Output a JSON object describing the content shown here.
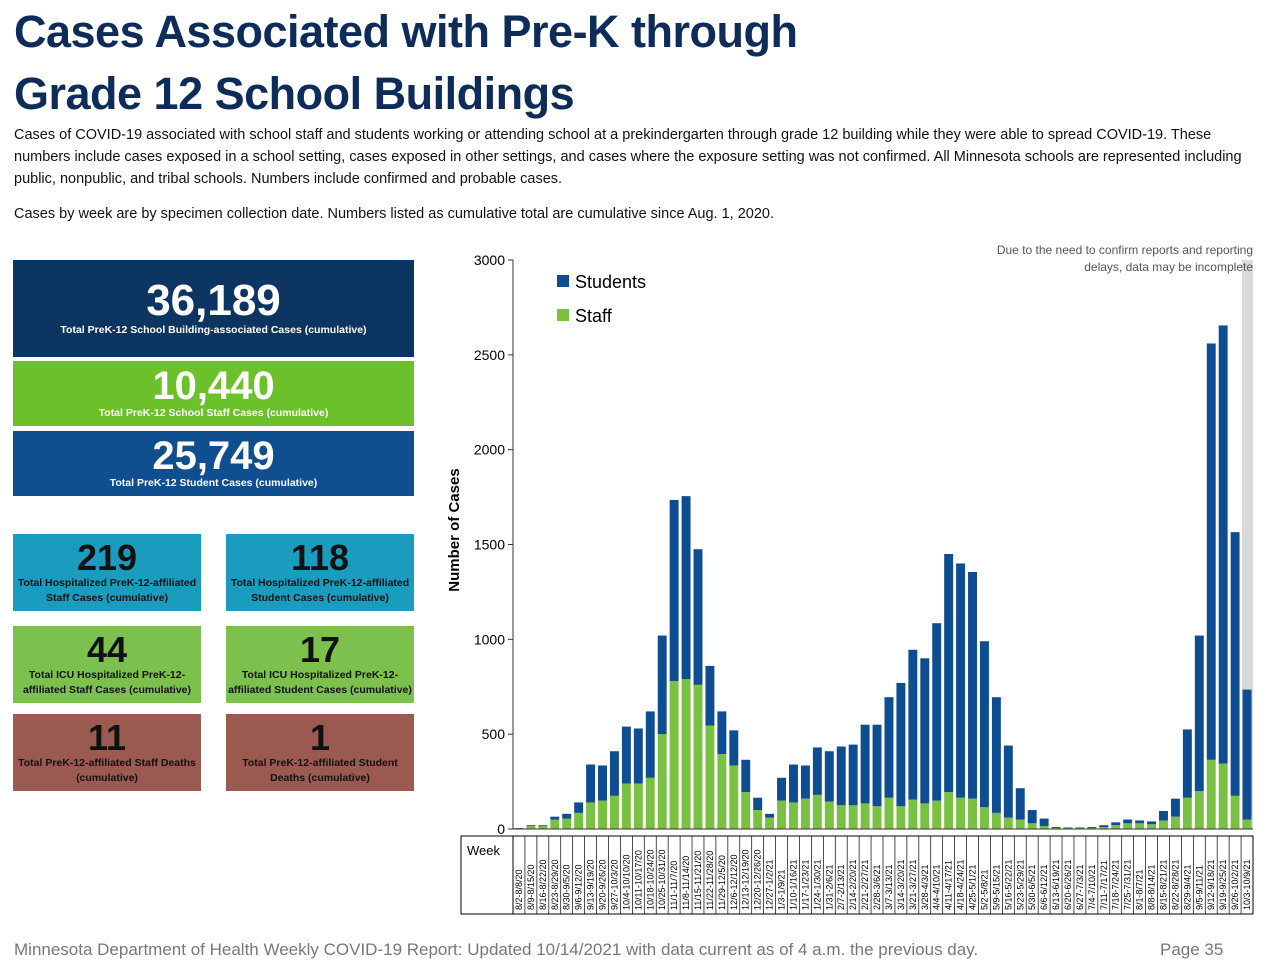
{
  "header": {
    "title_lines": [
      "Cases Associated with Pre-K through",
      "Grade 12 School Buildings"
    ],
    "paragraphs": [
      "Cases of COVID-19 associated with school staff and students working or attending school at a prekindergarten through grade 12 building while they were able to spread COVID-19. These numbers include cases exposed in a school setting, cases exposed in other settings, and cases where the exposure setting was not confirmed. All Minnesota schools are represented including public, nonpublic, and tribal schools. Numbers include confirmed and probable cases.",
      "Cases by week are by specimen collection date. Numbers listed as cumulative total are cumulative since Aug. 1, 2020."
    ]
  },
  "stats": [
    {
      "value": "36,189",
      "label": "Total PreK-12 School Building-associated Cases (cumulative)"
    },
    {
      "value": "10,440",
      "label": "Total PreK-12 School Staff Cases (cumulative)"
    },
    {
      "value": "25,749",
      "label": "Total PreK-12 Student Cases (cumulative)"
    },
    {
      "value": "219",
      "label": "Total Hospitalized PreK-12-affiliated Staff Cases (cumulative)"
    },
    {
      "value": "118",
      "label": "Total Hospitalized PreK-12-affiliated Student Cases (cumulative)"
    },
    {
      "value": "44",
      "label": "Total ICU Hospitalized PreK-12-affiliated Staff Cases (cumulative)"
    },
    {
      "value": "17",
      "label": "Total ICU Hospitalized PreK-12-affiliated Student Cases (cumulative)"
    },
    {
      "value": "11",
      "label": "Total PreK-12-affiliated Staff Deaths (cumulative)"
    },
    {
      "value": "1",
      "label": "Total PreK-12-affiliated Student Deaths (cumulative)"
    }
  ],
  "chart_data": {
    "type": "stacked_bar",
    "y_label": "Number of Cases",
    "x_header": "Week",
    "annotation": [
      "Due to the need to confirm reports and reporting",
      "delays, data may be incomplete"
    ],
    "ylim": [
      0,
      3000
    ],
    "yticks": [
      0,
      500,
      1000,
      1500,
      2000,
      2500,
      3000
    ],
    "grid": false,
    "legend": "upper-left",
    "categories": [
      "8/2-8/8/20",
      "8/9-8/15/20",
      "8/16-8/22/20",
      "8/23-8/29/20",
      "8/30-9/5/20",
      "9/6-9/12/20",
      "9/13-9/19/20",
      "9/20-9/26/20",
      "9/27-10/3/20",
      "10/4-10/10/20",
      "10/11-10/17/20",
      "10/18-10/24/20",
      "10/25-10/31/20",
      "11/1-11/7/20",
      "11/8-11/14/20",
      "11/15-11/21/20",
      "11/22-11/28/20",
      "11/29-12/5/20",
      "12/6-12/12/20",
      "12/13-12/19/20",
      "12/20-12/26/20",
      "12/27-1/2/21",
      "1/3-1/9/21",
      "1/10-1/16/21",
      "1/17-1/23/21",
      "1/24-1/30/21",
      "1/31-2/6/21",
      "2/7-2/13/21",
      "2/14-2/20/21",
      "2/21-2/27/21",
      "2/28-3/6/21",
      "3/7-3/13/21",
      "3/14-3/20/21",
      "3/21-3/27/21",
      "3/28-4/3/21",
      "4/4-4/10/21",
      "4/11-4/17/21",
      "4/18-4/24/21",
      "4/25-5/1/21",
      "5/2-5/8/21",
      "5/9-5/15/21",
      "5/16-5/22/21",
      "5/23-5/29/21",
      "5/30-6/5/21",
      "6/6-6/12/21",
      "6/13-6/19/21",
      "6/20-6/26/21",
      "6/27-7/3/21",
      "7/4-7/10/21",
      "7/11-7/17/21",
      "7/18-7/24/21",
      "7/25-7/31/21",
      "8/1-8/7/21",
      "8/8-8/14/21",
      "8/15-8/21/21",
      "8/22-8/28/21",
      "8/29-9/4/21",
      "9/5-9/11/21",
      "9/12-9/18/21",
      "9/19-9/25/21",
      "9/26-10/2/21",
      "10/3-10/9/21"
    ],
    "series": [
      {
        "name": "Staff",
        "color": "#7ac143",
        "values": [
          3,
          15,
          15,
          50,
          55,
          85,
          140,
          150,
          175,
          240,
          240,
          270,
          500,
          780,
          790,
          760,
          545,
          395,
          335,
          195,
          100,
          60,
          150,
          140,
          160,
          180,
          145,
          125,
          125,
          135,
          120,
          165,
          120,
          155,
          135,
          150,
          195,
          165,
          160,
          115,
          85,
          60,
          50,
          30,
          15,
          5,
          4,
          4,
          5,
          10,
          20,
          30,
          30,
          25,
          45,
          65,
          165,
          200,
          365,
          345,
          175,
          50
        ]
      },
      {
        "name": "Students",
        "color": "#0e4d92",
        "values": [
          2,
          5,
          5,
          15,
          25,
          55,
          200,
          185,
          235,
          300,
          290,
          350,
          520,
          955,
          965,
          715,
          315,
          225,
          185,
          170,
          65,
          20,
          120,
          200,
          175,
          250,
          265,
          310,
          320,
          415,
          430,
          530,
          650,
          790,
          765,
          935,
          1255,
          1235,
          1195,
          875,
          610,
          380,
          165,
          70,
          40,
          5,
          4,
          4,
          5,
          10,
          15,
          20,
          15,
          15,
          50,
          95,
          360,
          820,
          2195,
          2310,
          1390,
          685
        ]
      }
    ]
  },
  "footer": {
    "text": "Minnesota Department of Health Weekly COVID-19 Report: Updated 10/14/2021 with data current as of 4 a.m. the previous day.",
    "page": "Page 35"
  }
}
